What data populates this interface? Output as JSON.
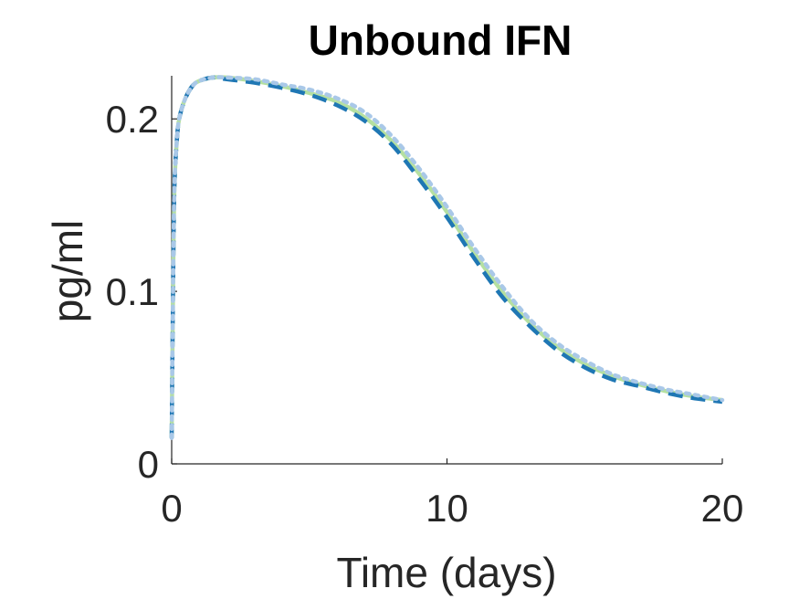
{
  "chart_data": {
    "type": "line",
    "title": "Unbound IFN",
    "xlabel": "Time (days)",
    "ylabel": "pg/ml",
    "xlim": [
      0,
      20
    ],
    "ylim": [
      0,
      0.225
    ],
    "x_ticks": [
      "0",
      "10",
      "20"
    ],
    "y_ticks": [
      "0",
      "0.1",
      "0.2"
    ],
    "x_tick_values": [
      0,
      10,
      20
    ],
    "y_tick_values": [
      0,
      0.1,
      0.2
    ],
    "grid": false,
    "legend": "none",
    "series": [
      {
        "color": "#b5e0a1",
        "style": "solid",
        "x": [
          0,
          0.05,
          0.1,
          0.2,
          0.3,
          0.5,
          0.75,
          1,
          1.5,
          2,
          3,
          4,
          5,
          6,
          7,
          8,
          9,
          10,
          11,
          12,
          13,
          14,
          15,
          16,
          17,
          18,
          19,
          20
        ],
        "values": [
          0.015,
          0.1,
          0.16,
          0.19,
          0.202,
          0.212,
          0.219,
          0.222,
          0.224,
          0.224,
          0.222,
          0.219,
          0.215,
          0.21,
          0.201,
          0.187,
          0.168,
          0.146,
          0.122,
          0.1,
          0.082,
          0.068,
          0.058,
          0.051,
          0.046,
          0.042,
          0.039,
          0.037
        ]
      },
      {
        "color": "#1f77b4",
        "style": "dashed",
        "x": [
          0,
          0.05,
          0.1,
          0.2,
          0.3,
          0.5,
          0.75,
          1,
          1.5,
          2,
          3,
          4,
          5,
          6,
          7,
          8,
          9,
          10,
          11,
          12,
          13,
          14,
          15,
          16,
          17,
          18,
          19,
          20
        ],
        "values": [
          0.015,
          0.1,
          0.16,
          0.19,
          0.202,
          0.212,
          0.219,
          0.222,
          0.224,
          0.223,
          0.221,
          0.218,
          0.214,
          0.208,
          0.199,
          0.185,
          0.165,
          0.143,
          0.119,
          0.097,
          0.08,
          0.066,
          0.056,
          0.049,
          0.045,
          0.041,
          0.038,
          0.036
        ]
      },
      {
        "color": "#a9c8e8",
        "style": "dotted",
        "x": [
          0,
          0.05,
          0.1,
          0.2,
          0.3,
          0.5,
          0.75,
          1,
          1.5,
          2,
          3,
          4,
          5,
          6,
          7,
          8,
          9,
          10,
          11,
          12,
          13,
          14,
          15,
          16,
          17,
          18,
          19,
          20
        ],
        "values": [
          0.015,
          0.1,
          0.16,
          0.19,
          0.202,
          0.212,
          0.219,
          0.222,
          0.224,
          0.224,
          0.223,
          0.22,
          0.217,
          0.212,
          0.204,
          0.19,
          0.171,
          0.149,
          0.125,
          0.103,
          0.084,
          0.07,
          0.06,
          0.052,
          0.047,
          0.043,
          0.04,
          0.037
        ]
      }
    ]
  }
}
